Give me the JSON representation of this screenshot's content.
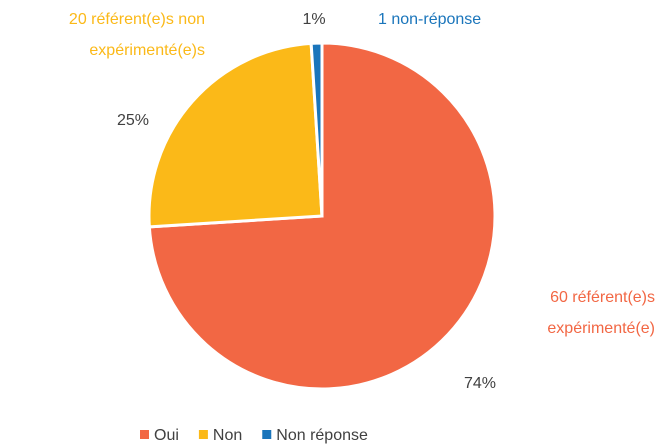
{
  "chart_data": {
    "type": "pie",
    "categories": [
      "Oui",
      "Non",
      "Non réponse"
    ],
    "values": [
      74,
      25,
      1
    ],
    "value_labels": [
      "74%",
      "25%",
      "1%"
    ],
    "colors": [
      "#f26744",
      "#fbb918",
      "#1a75bb"
    ],
    "legend": "bottom",
    "annotations": [
      {
        "lines": [
          "60 référent(e)s",
          "expérimenté(e)"
        ],
        "color": "#f26744"
      },
      {
        "lines": [
          "20 référent(e)s non",
          "expérimenté(e)s"
        ],
        "color": "#fbb918"
      },
      {
        "lines": [
          "1 non-réponse"
        ],
        "color": "#1a75bb"
      }
    ]
  }
}
